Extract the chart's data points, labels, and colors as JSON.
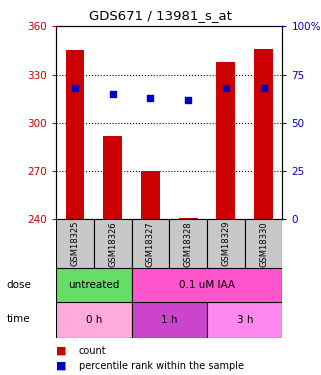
{
  "title": "GDS671 / 13981_s_at",
  "samples": [
    "GSM18325",
    "GSM18326",
    "GSM18327",
    "GSM18328",
    "GSM18329",
    "GSM18330"
  ],
  "bar_values": [
    345,
    292,
    270,
    241,
    338,
    346
  ],
  "bar_bottom": 240,
  "percentile_values": [
    68,
    65,
    63,
    62,
    68,
    68
  ],
  "ylim_left": [
    240,
    360
  ],
  "ylim_right": [
    0,
    100
  ],
  "yticks_left": [
    240,
    270,
    300,
    330,
    360
  ],
  "yticks_right": [
    0,
    25,
    50,
    75,
    100
  ],
  "bar_color": "#CC0000",
  "percentile_color": "#0000CC",
  "bar_width": 0.5,
  "dose_color_untreated": "#66DD66",
  "dose_color_treated": "#FF55CC",
  "time_color_0h": "#FFAADD",
  "time_color_1h": "#CC44CC",
  "time_color_3h": "#FF88EE",
  "sample_box_color": "#C8C8C8",
  "grid_color": "black",
  "background_color": "#FFFFFF",
  "left_label_color": "#CC0000",
  "right_label_color": "#0000CC"
}
